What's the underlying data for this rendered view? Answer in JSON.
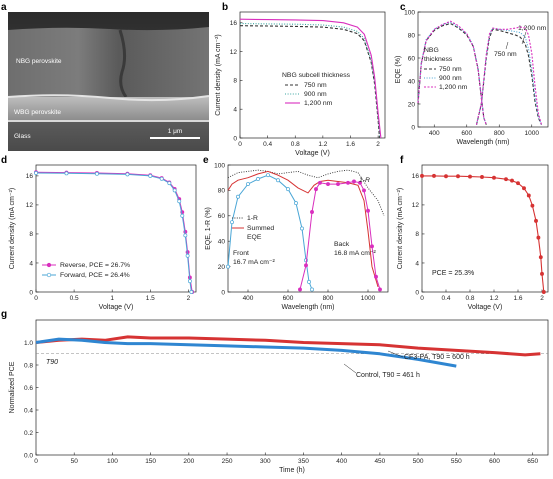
{
  "panel_labels": {
    "a": "a",
    "b": "b",
    "c": "c",
    "d": "d",
    "e": "e",
    "f": "f",
    "g": "g"
  },
  "colors": {
    "magenta": "#d92fbe",
    "blue": "#4aa6d6",
    "dark": "#333333",
    "green": "#3aa6a0",
    "red": "#d63333",
    "series_blue": "#2f86d1",
    "grey": "#888888"
  },
  "panel_a": {
    "labels": [
      "NBG perovskite",
      "WBG perovskite",
      "Glass"
    ],
    "scale_bar": "1 μm"
  },
  "chart_data": [
    {
      "panel": "b",
      "type": "line",
      "xlabel": "Voltage (V)",
      "ylabel": "Current density (mA cm⁻²)",
      "xlim": [
        0,
        2.1
      ],
      "ylim": [
        0,
        17.5
      ],
      "xticks": [
        0,
        0.4,
        0.8,
        1.2,
        1.6,
        2.0
      ],
      "yticks": [
        0,
        4,
        8,
        12,
        16
      ],
      "legend_title": "NBG subcell thickness",
      "series": [
        {
          "name": "750 nm",
          "style": "dashed",
          "color": "#333333",
          "x": [
            0,
            0.4,
            0.8,
            1.2,
            1.5,
            1.7,
            1.8,
            1.9,
            1.95,
            2.0,
            2.02
          ],
          "y": [
            15.6,
            15.55,
            15.5,
            15.4,
            15.1,
            14.5,
            13.5,
            10.5,
            7.5,
            2.5,
            0
          ]
        },
        {
          "name": "900 nm",
          "style": "dotted",
          "color": "#3aa6a0",
          "x": [
            0,
            0.4,
            0.8,
            1.2,
            1.5,
            1.7,
            1.8,
            1.9,
            1.95,
            2.0,
            2.03
          ],
          "y": [
            15.9,
            15.85,
            15.8,
            15.7,
            15.4,
            14.8,
            13.8,
            10.8,
            7.8,
            3.0,
            0
          ]
        },
        {
          "name": "1,200 nm",
          "style": "solid",
          "color": "#d92fbe",
          "x": [
            0,
            0.4,
            0.8,
            1.2,
            1.5,
            1.7,
            1.8,
            1.9,
            1.95,
            2.0,
            2.04
          ],
          "y": [
            16.5,
            16.45,
            16.4,
            16.3,
            16.0,
            15.4,
            14.4,
            11.5,
            8.5,
            3.5,
            0
          ]
        }
      ]
    },
    {
      "panel": "c",
      "type": "line",
      "xlabel": "Wavelength (nm)",
      "ylabel": "EQE (%)",
      "xlim": [
        300,
        1100
      ],
      "ylim": [
        0,
        100
      ],
      "xticks": [
        400,
        600,
        800,
        1000
      ],
      "yticks": [
        0,
        20,
        40,
        60,
        80,
        100
      ],
      "legend_title": "NBG thickness",
      "annotations": [
        "1,200 nm",
        "750 nm"
      ],
      "series": [
        {
          "name": "750 nm",
          "style": "dashed",
          "color": "#333333",
          "wbg": {
            "x": [
              300,
              320,
              350,
              400,
              450,
              500,
              550,
              600,
              640,
              670,
              690,
              705,
              720
            ],
            "y": [
              20,
              55,
              75,
              84,
              88,
              90,
              86,
              80,
              70,
              50,
              25,
              8,
              2
            ]
          },
          "nbg": {
            "x": [
              660,
              690,
              720,
              740,
              760,
              800,
              850,
              900,
              930,
              960,
              980,
              1000,
              1020,
              1040,
              1060
            ],
            "y": [
              2,
              20,
              60,
              78,
              85,
              84,
              82,
              80,
              78,
              72,
              62,
              45,
              22,
              8,
              2
            ]
          }
        },
        {
          "name": "900 nm",
          "style": "dotted",
          "color": "#4aa6d6",
          "wbg": {
            "x": [
              300,
              320,
              350,
              400,
              450,
              500,
              550,
              600,
              640,
              670,
              690,
              705,
              720
            ],
            "y": [
              22,
              56,
              76,
              85,
              89,
              91,
              87,
              81,
              71,
              51,
              26,
              8,
              2
            ]
          },
          "nbg": {
            "x": [
              660,
              690,
              720,
              740,
              760,
              800,
              850,
              900,
              930,
              960,
              980,
              1000,
              1020,
              1040,
              1060
            ],
            "y": [
              2,
              20,
              62,
              80,
              86,
              85,
              84,
              83,
              82,
              78,
              68,
              50,
              26,
              9,
              2
            ]
          }
        },
        {
          "name": "1,200 nm",
          "style": "short-dashed",
          "color": "#d92fbe",
          "wbg": {
            "x": [
              300,
              320,
              350,
              400,
              450,
              500,
              550,
              600,
              640,
              670,
              690,
              705,
              720
            ],
            "y": [
              21,
              55,
              75,
              85,
              89,
              92,
              88,
              81,
              70,
              50,
              25,
              8,
              2
            ]
          },
          "nbg": {
            "x": [
              660,
              690,
              720,
              740,
              760,
              800,
              850,
              900,
              930,
              960,
              980,
              1000,
              1020,
              1040,
              1060
            ],
            "y": [
              2,
              21,
              63,
              81,
              86,
              85,
              85,
              86,
              87,
              86,
              80,
              64,
              36,
              12,
              2
            ]
          }
        }
      ]
    },
    {
      "panel": "d",
      "type": "line",
      "xlabel": "Voltage (V)",
      "ylabel": "Current density (mA cm⁻²)",
      "xlim": [
        0,
        2.1
      ],
      "ylim": [
        0,
        17.5
      ],
      "xticks": [
        0,
        0.5,
        1.0,
        1.5,
        2.0
      ],
      "yticks": [
        0,
        4,
        8,
        12,
        16
      ],
      "series": [
        {
          "name": "Reverse, PCE = 26.7%",
          "marker": "filled-circle",
          "color": "#d92fbe",
          "x": [
            0,
            0.4,
            0.8,
            1.2,
            1.5,
            1.65,
            1.75,
            1.82,
            1.88,
            1.92,
            1.96,
            1.99,
            2.02,
            2.05
          ],
          "y": [
            16.5,
            16.45,
            16.4,
            16.3,
            16.1,
            15.7,
            15.1,
            14.2,
            12.8,
            11.0,
            8.3,
            5.5,
            2.0,
            0
          ]
        },
        {
          "name": "Forward, PCE = 26.4%",
          "marker": "open-circle",
          "color": "#4aa6d6",
          "x": [
            0,
            0.4,
            0.8,
            1.2,
            1.5,
            1.65,
            1.75,
            1.82,
            1.88,
            1.92,
            1.96,
            1.99,
            2.02,
            2.04
          ],
          "y": [
            16.4,
            16.35,
            16.3,
            16.2,
            16.0,
            15.6,
            15.0,
            14.0,
            12.5,
            10.5,
            7.8,
            5.0,
            1.5,
            0
          ]
        }
      ]
    },
    {
      "panel": "e",
      "type": "line",
      "xlabel": "Wavelength (nm)",
      "ylabel": "EQE, 1-R (%)",
      "xlim": [
        300,
        1100
      ],
      "ylim": [
        0,
        100
      ],
      "xticks": [
        400,
        600,
        800,
        1000
      ],
      "yticks": [
        0,
        20,
        40,
        60,
        80,
        100
      ],
      "annotations": [
        "1-R",
        "Front",
        "16.7 mA cm⁻²",
        "Back",
        "16.8 mA cm⁻²"
      ],
      "series": [
        {
          "name": "1-R",
          "style": "dotted",
          "color": "#333333",
          "x": [
            300,
            350,
            400,
            450,
            500,
            550,
            600,
            650,
            700,
            750,
            800,
            850,
            900,
            950,
            1000,
            1050,
            1080
          ],
          "y": [
            90,
            94,
            95,
            96,
            95,
            93,
            94,
            95,
            92,
            90,
            93,
            95,
            96,
            94,
            82,
            72,
            60
          ]
        },
        {
          "name": "Summed EQE",
          "style": "solid",
          "color": "#d63333",
          "x": [
            300,
            320,
            350,
            400,
            450,
            500,
            550,
            600,
            650,
            700,
            730,
            760,
            800,
            850,
            900,
            950,
            980,
            1000,
            1020,
            1050
          ],
          "y": [
            80,
            85,
            88,
            90,
            93,
            95,
            92,
            88,
            82,
            78,
            84,
            87,
            88,
            87,
            86,
            84,
            72,
            48,
            20,
            4
          ]
        },
        {
          "name": "Front",
          "marker": "open-circle",
          "color": "#4aa6d6",
          "x": [
            300,
            320,
            350,
            400,
            450,
            500,
            550,
            600,
            640,
            670,
            690,
            705,
            720
          ],
          "y": [
            20,
            55,
            75,
            85,
            89,
            92,
            88,
            81,
            70,
            50,
            25,
            8,
            2
          ]
        },
        {
          "name": "Back",
          "marker": "filled-circle",
          "color": "#d92fbe",
          "x": [
            660,
            690,
            720,
            740,
            760,
            800,
            850,
            900,
            930,
            960,
            980,
            1000,
            1020,
            1040,
            1060
          ],
          "y": [
            2,
            21,
            63,
            81,
            86,
            85,
            85,
            86,
            87,
            86,
            80,
            64,
            36,
            12,
            2
          ]
        }
      ]
    },
    {
      "panel": "f",
      "type": "line",
      "xlabel": "Voltage (V)",
      "ylabel": "Current density (mA cm⁻²)",
      "xlim": [
        0,
        2.1
      ],
      "ylim": [
        0,
        17.5
      ],
      "xticks": [
        0,
        0.4,
        0.8,
        1.2,
        1.6,
        2.0
      ],
      "yticks": [
        0,
        4,
        8,
        12,
        16
      ],
      "annotations": [
        "PCE = 25.3%"
      ],
      "series": [
        {
          "name": "",
          "marker": "filled-circle",
          "color": "#d63333",
          "x": [
            0,
            0.2,
            0.4,
            0.6,
            0.8,
            1.0,
            1.2,
            1.4,
            1.5,
            1.6,
            1.7,
            1.78,
            1.84,
            1.9,
            1.94,
            1.98,
            2.0,
            2.03
          ],
          "y": [
            16.0,
            16.0,
            15.95,
            15.95,
            15.9,
            15.85,
            15.75,
            15.55,
            15.35,
            15.0,
            14.3,
            13.3,
            11.9,
            9.8,
            7.5,
            4.8,
            2.5,
            0
          ]
        }
      ]
    },
    {
      "panel": "g",
      "type": "line",
      "xlabel": "Time (h)",
      "ylabel": "Normalized PCE",
      "xlim": [
        0,
        670
      ],
      "ylim": [
        0,
        1.2
      ],
      "xticks": [
        0,
        50,
        100,
        150,
        200,
        250,
        300,
        350,
        400,
        450,
        500,
        550,
        600,
        650
      ],
      "yticks": [
        0,
        0.2,
        0.4,
        0.6,
        0.8,
        1.0
      ],
      "threshold": {
        "label": "T90",
        "value": 0.9
      },
      "series": [
        {
          "name": "CF3-PA, T90 = 600 h",
          "color": "#d63333",
          "x": [
            0,
            30,
            60,
            90,
            120,
            150,
            200,
            250,
            300,
            350,
            400,
            450,
            500,
            550,
            600,
            640,
            660
          ],
          "y": [
            1.0,
            1.02,
            1.03,
            1.02,
            1.05,
            1.04,
            1.04,
            1.03,
            1.02,
            1.0,
            0.99,
            0.98,
            0.95,
            0.93,
            0.91,
            0.89,
            0.9
          ]
        },
        {
          "name": "Control, T90 = 461 h",
          "color": "#2f86d1",
          "x": [
            0,
            30,
            60,
            90,
            120,
            150,
            200,
            250,
            300,
            350,
            400,
            450,
            500,
            550
          ],
          "y": [
            1.0,
            1.03,
            1.02,
            1.0,
            0.99,
            0.99,
            0.98,
            0.97,
            0.96,
            0.95,
            0.93,
            0.9,
            0.85,
            0.79
          ]
        }
      ]
    }
  ]
}
